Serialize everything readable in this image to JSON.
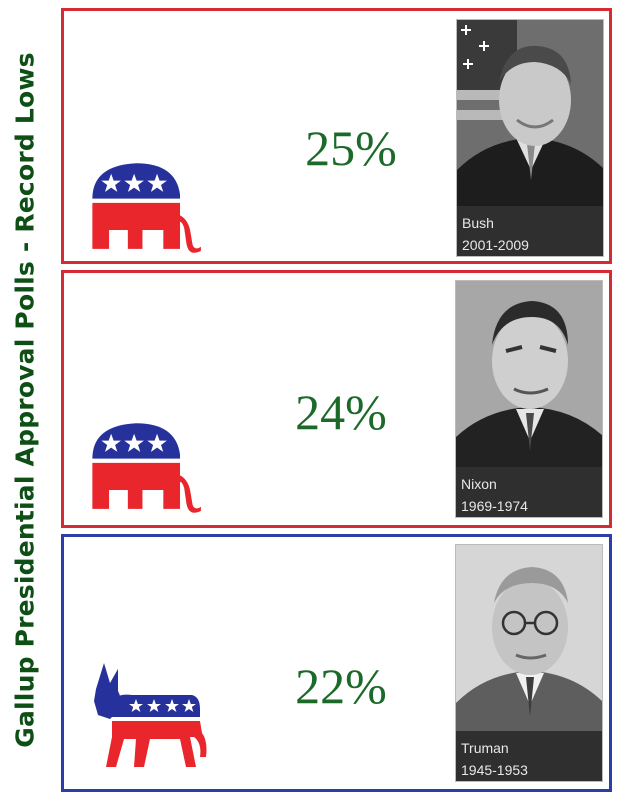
{
  "title": "Gallup Presidential Approval Polls - Record Lows",
  "panels": [
    {
      "percent": "25%",
      "name": "Bush",
      "years": "2001-2009",
      "party_icon": "republican-elephant-icon",
      "border_color": "#d42c33"
    },
    {
      "percent": "24%",
      "name": "Nixon",
      "years": "1969-1974",
      "party_icon": "republican-elephant-icon",
      "border_color": "#d42c33"
    },
    {
      "percent": "22%",
      "name": "Truman",
      "years": "1945-1953",
      "party_icon": "democratic-donkey-icon",
      "border_color": "#2c3fa8"
    }
  ],
  "colors": {
    "title_green": "#0e4f16",
    "percent_green": "#1c6a2a",
    "party_red": "#e8262b",
    "party_blue": "#27319b"
  }
}
